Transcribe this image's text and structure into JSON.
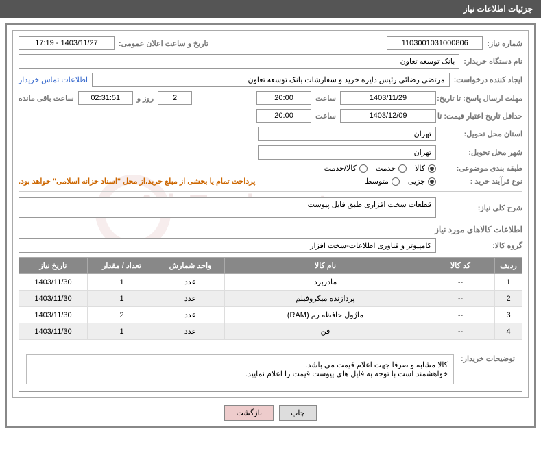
{
  "header": {
    "title": "جزئیات اطلاعات نیاز"
  },
  "fields": {
    "need_number_label": "شماره نیاز:",
    "need_number": "1103001031000806",
    "announce_label": "تاریخ و ساعت اعلان عمومی:",
    "announce_value": "1403/11/27 - 17:19",
    "buyer_org_label": "نام دستگاه خریدار:",
    "buyer_org": "بانک توسعه تعاون",
    "requester_label": "ایجاد کننده درخواست:",
    "requester": "مرتضی رضائی رئیس دایره خرید و سفارشات بانک توسعه تعاون",
    "contact_link": "اطلاعات تماس خریدار",
    "response_deadline_label": "مهلت ارسال پاسخ: تا تاریخ:",
    "response_date": "1403/11/29",
    "time_label": "ساعت",
    "response_time": "20:00",
    "days_remain": "2",
    "days_label": "روز و",
    "hours_remain": "02:31:51",
    "hours_label": "ساعت باقی مانده",
    "validity_label": "حداقل تاریخ اعتبار قیمت: تا تاریخ:",
    "validity_date": "1403/12/09",
    "validity_time": "20:00",
    "province_label": "استان محل تحویل:",
    "province": "تهران",
    "city_label": "شهر محل تحویل:",
    "city": "تهران",
    "category_label": "طبقه بندی موضوعی:",
    "cat_goods": "کالا",
    "cat_service": "خدمت",
    "cat_both": "کالا/خدمت",
    "process_label": "نوع فرآیند خرید :",
    "proc_partial": "جزیی",
    "proc_medium": "متوسط",
    "treasury_note": "پرداخت تمام یا بخشی از مبلغ خرید،از محل \"اسناد خزانه اسلامی\" خواهد بود.",
    "need_desc_label": "شرح کلی نیاز:",
    "need_desc": "قطعات سخت افزاری طبق فایل پیوست",
    "goods_info_title": "اطلاعات کالاهای مورد نیاز",
    "goods_group_label": "گروه کالا:",
    "goods_group": "کامپیوتر و فناوری اطلاعات-سخت افزار",
    "buyer_notes_label": "توضیحات خریدار:",
    "buyer_notes_l1": "کالا مشابه و صرفا جهت اعلام قیمت می باشد.",
    "buyer_notes_l2": "خواهشمند است با توجه به فایل های پیوست قیمت را اعلام نمایید."
  },
  "table": {
    "headers": {
      "row": "ردیف",
      "code": "کد کالا",
      "name": "نام کالا",
      "unit": "واحد شمارش",
      "qty": "تعداد / مقدار",
      "date": "تاریخ نیاز"
    },
    "rows": [
      {
        "row": "1",
        "code": "--",
        "name": "مادربرد",
        "unit": "عدد",
        "qty": "1",
        "date": "1403/11/30"
      },
      {
        "row": "2",
        "code": "--",
        "name": "پردازنده میکروفیلم",
        "unit": "عدد",
        "qty": "1",
        "date": "1403/11/30"
      },
      {
        "row": "3",
        "code": "--",
        "name": "ماژول حافظه رم (RAM)",
        "unit": "عدد",
        "qty": "2",
        "date": "1403/11/30"
      },
      {
        "row": "4",
        "code": "--",
        "name": "فن",
        "unit": "عدد",
        "qty": "1",
        "date": "1403/11/30"
      }
    ]
  },
  "buttons": {
    "print": "چاپ",
    "back": "بازگشت"
  },
  "watermark": "AriaTender.net"
}
